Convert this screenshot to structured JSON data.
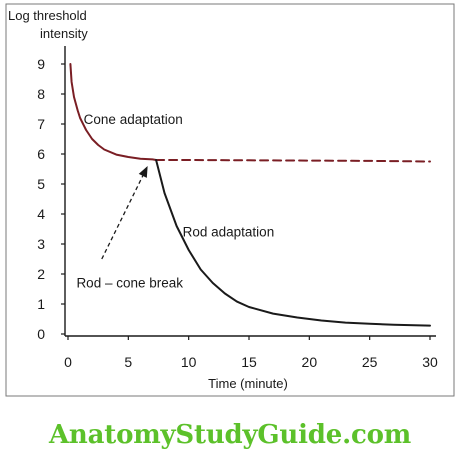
{
  "chart_data": {
    "type": "line",
    "title": "",
    "ylabel_line1": "Log threshold",
    "ylabel_line2": "intensity",
    "xlabel": "Time (minute)",
    "xlim": [
      0,
      30
    ],
    "ylim": [
      0,
      9
    ],
    "xticks": [
      "0",
      "5",
      "10",
      "15",
      "20",
      "25",
      "30"
    ],
    "yticks": [
      "0",
      "1",
      "2",
      "3",
      "4",
      "5",
      "6",
      "7",
      "8",
      "9"
    ],
    "grid": false,
    "colors": {
      "cone": "#7a1e24",
      "rod": "#1a1a1a",
      "arrow": "#1a1a1a"
    },
    "series": [
      {
        "name": "Cone adaptation",
        "style": "solid",
        "x": [
          0.2,
          0.3,
          0.5,
          0.8,
          1.0,
          1.5,
          2.0,
          2.5,
          3.0,
          4.0,
          5.0,
          6.0,
          7.0,
          7.3
        ],
        "y": [
          9.0,
          8.4,
          7.9,
          7.45,
          7.2,
          6.8,
          6.5,
          6.3,
          6.15,
          5.98,
          5.9,
          5.84,
          5.82,
          5.8
        ]
      },
      {
        "name": "",
        "style": "dashed",
        "x": [
          7.3,
          10,
          15,
          20,
          25,
          30
        ],
        "y": [
          5.8,
          5.8,
          5.79,
          5.78,
          5.77,
          5.75
        ]
      },
      {
        "name": "Rod adaptation",
        "style": "solid",
        "x": [
          7.3,
          8,
          9,
          10,
          11,
          12,
          13,
          14,
          15,
          17,
          19,
          21,
          23,
          25,
          27,
          30
        ],
        "y": [
          5.8,
          4.7,
          3.6,
          2.8,
          2.15,
          1.7,
          1.35,
          1.08,
          0.9,
          0.68,
          0.55,
          0.45,
          0.38,
          0.34,
          0.31,
          0.28
        ]
      }
    ],
    "annotations": [
      {
        "text": "Cone adaptation",
        "x": 1.3,
        "y": 7.0
      },
      {
        "text": "Rod adaptation",
        "x": 9.5,
        "y": 3.25
      },
      {
        "text": "Rod – cone break",
        "x": 0.7,
        "y": 1.55
      }
    ],
    "arrow": {
      "from": [
        2.8,
        2.5
      ],
      "to": [
        6.6,
        5.6
      ]
    }
  },
  "watermark": "AnatomyStudyGuide.com"
}
